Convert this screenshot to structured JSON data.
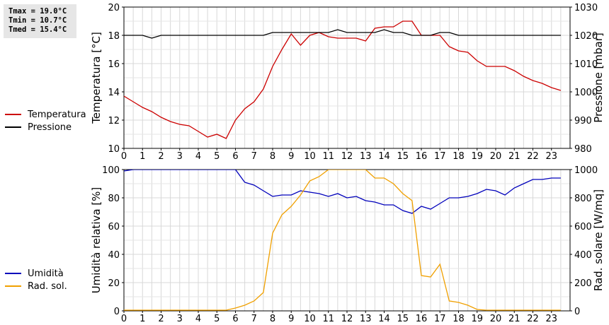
{
  "stats": {
    "tmax": "Tmax = 19.0°C",
    "tmin": "Tmin = 10.7°C",
    "tmed": "Tmed = 15.4°C"
  },
  "chart_data": [
    {
      "type": "line",
      "ylabel_left": "Temperatura [°C]",
      "ylabel_right": "Pressione [mbar]",
      "xlim": [
        0,
        24
      ],
      "xticks": [
        "0",
        "1",
        "2",
        "3",
        "4",
        "5",
        "6",
        "7",
        "8",
        "9",
        "10",
        "11",
        "12",
        "13",
        "14",
        "15",
        "16",
        "17",
        "18",
        "19",
        "20",
        "21",
        "22",
        "23"
      ],
      "ylim_left": [
        10,
        20
      ],
      "yticks_left": [
        "10",
        "12",
        "14",
        "16",
        "18",
        "20"
      ],
      "ylim_right": [
        980,
        1030
      ],
      "yticks_right": [
        "980",
        "990",
        "1000",
        "1010",
        "1020",
        "1030"
      ],
      "grid": true,
      "legend_position": "left",
      "series": [
        {
          "name": "Temperatura",
          "color": "#cc0000",
          "axis": "left",
          "x": [
            0,
            0.5,
            1,
            1.5,
            2,
            2.5,
            3,
            3.5,
            4,
            4.5,
            5,
            5.5,
            6,
            6.5,
            7,
            7.5,
            8,
            8.5,
            9,
            9.5,
            10,
            10.5,
            11,
            11.5,
            12,
            12.5,
            13,
            13.5,
            14,
            14.5,
            15,
            15.5,
            16,
            16.5,
            17,
            17.5,
            18,
            18.5,
            19,
            19.5,
            20,
            20.5,
            21,
            21.5,
            22,
            22.5,
            23,
            23.5
          ],
          "values": [
            13.7,
            13.3,
            12.9,
            12.6,
            12.2,
            11.9,
            11.7,
            11.6,
            11.2,
            10.8,
            11.0,
            10.7,
            12.0,
            12.8,
            13.3,
            14.2,
            15.8,
            17.0,
            18.1,
            17.3,
            18.0,
            18.2,
            17.9,
            17.8,
            17.8,
            17.8,
            17.6,
            18.5,
            18.6,
            18.6,
            19.0,
            19.0,
            18.0,
            18.0,
            18.0,
            17.2,
            16.9,
            16.8,
            16.2,
            15.8,
            15.8,
            15.8,
            15.5,
            15.1,
            14.8,
            14.6,
            14.3,
            14.1
          ]
        },
        {
          "name": "Pressione",
          "color": "#000000",
          "axis": "right",
          "x": [
            0,
            0.5,
            1,
            1.5,
            2,
            2.5,
            3,
            3.5,
            4,
            4.5,
            5,
            5.5,
            6,
            6.5,
            7,
            7.5,
            8,
            8.5,
            9,
            9.5,
            10,
            10.5,
            11,
            11.5,
            12,
            12.5,
            13,
            13.5,
            14,
            14.5,
            15,
            15.5,
            16,
            16.5,
            17,
            17.5,
            18,
            18.5,
            19,
            19.5,
            20,
            20.5,
            21,
            21.5,
            22,
            22.5,
            23,
            23.5
          ],
          "values": [
            1020,
            1020,
            1020,
            1019,
            1020,
            1020,
            1020,
            1020,
            1020,
            1020,
            1020,
            1020,
            1020,
            1020,
            1020,
            1020,
            1021,
            1021,
            1021,
            1021,
            1021,
            1021,
            1021,
            1022,
            1021,
            1021,
            1021,
            1021,
            1022,
            1021,
            1021,
            1020,
            1020,
            1020,
            1021,
            1021,
            1020,
            1020,
            1020,
            1020,
            1020,
            1020,
            1020,
            1020,
            1020,
            1020,
            1020,
            1020
          ]
        }
      ]
    },
    {
      "type": "line",
      "ylabel_left": "Umidità relativa [%]",
      "ylabel_right": "Rad. solare [W/mq]",
      "xlim": [
        0,
        24
      ],
      "xticks": [
        "0",
        "1",
        "2",
        "3",
        "4",
        "5",
        "6",
        "7",
        "8",
        "9",
        "10",
        "11",
        "12",
        "13",
        "14",
        "15",
        "16",
        "17",
        "18",
        "19",
        "20",
        "21",
        "22",
        "23"
      ],
      "ylim_left": [
        0,
        100
      ],
      "yticks_left": [
        "0",
        "20",
        "40",
        "60",
        "80",
        "100"
      ],
      "ylim_right": [
        0,
        1000
      ],
      "yticks_right": [
        "0",
        "200",
        "400",
        "600",
        "800",
        "1000"
      ],
      "grid": true,
      "legend_position": "left",
      "series": [
        {
          "name": "Umidità",
          "color": "#0000bb",
          "axis": "left",
          "x": [
            0,
            0.5,
            1,
            1.5,
            2,
            2.5,
            3,
            3.5,
            4,
            4.5,
            5,
            5.5,
            6,
            6.5,
            7,
            7.5,
            8,
            8.5,
            9,
            9.5,
            10,
            10.5,
            11,
            11.5,
            12,
            12.5,
            13,
            13.5,
            14,
            14.5,
            15,
            15.5,
            16,
            16.5,
            17,
            17.5,
            18,
            18.5,
            19,
            19.5,
            20,
            20.5,
            21,
            21.5,
            22,
            22.5,
            23,
            23.5
          ],
          "values": [
            99,
            100,
            100,
            100,
            100,
            100,
            100,
            100,
            100,
            100,
            100,
            100,
            100,
            91,
            89,
            85,
            81,
            82,
            82,
            85,
            84,
            83,
            81,
            83,
            80,
            81,
            78,
            77,
            75,
            75,
            71,
            69,
            74,
            72,
            76,
            80,
            80,
            81,
            83,
            86,
            85,
            82,
            87,
            90,
            93,
            93,
            94,
            94
          ]
        },
        {
          "name": "Rad. sol.",
          "color": "#f0a000",
          "axis": "right",
          "x": [
            0,
            0.5,
            1,
            1.5,
            2,
            2.5,
            3,
            3.5,
            4,
            4.5,
            5,
            5.5,
            6,
            6.5,
            7,
            7.5,
            8,
            8.5,
            9,
            9.5,
            10,
            10.5,
            11,
            11.5,
            12,
            12.5,
            13,
            13.5,
            14,
            14.5,
            15,
            15.5,
            16,
            16.5,
            17,
            17.5,
            18,
            18.5,
            19,
            19.5,
            20,
            20.5,
            21,
            21.5,
            22,
            22.5,
            23,
            23.5
          ],
          "values": [
            5,
            5,
            5,
            5,
            5,
            5,
            5,
            5,
            5,
            5,
            5,
            5,
            20,
            40,
            70,
            130,
            550,
            680,
            740,
            820,
            920,
            950,
            1000,
            1000,
            1000,
            1000,
            1000,
            940,
            940,
            900,
            830,
            780,
            250,
            240,
            330,
            70,
            60,
            40,
            10,
            5,
            5,
            5,
            5,
            5,
            5,
            5,
            5,
            5
          ]
        }
      ]
    }
  ]
}
